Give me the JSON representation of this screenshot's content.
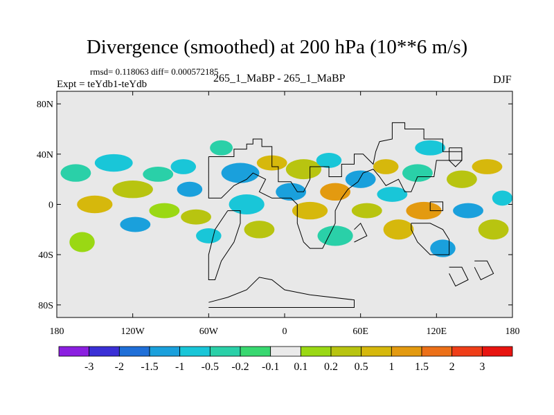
{
  "chart_data": {
    "type": "heatmap",
    "title": "Divergence (smoothed) at 200 hPa (10**6 m/s)",
    "stats_text": "rmsd= 0.118063 diff= 0.000572185",
    "center_label": "265_1_MaBP - 265_1_MaBP",
    "left_label": "Expt = teYdb1-teYdb",
    "right_label": "DJF",
    "x_axis": {
      "range": [
        -180,
        180
      ],
      "ticks": [
        -180,
        -120,
        -60,
        0,
        60,
        120,
        180
      ],
      "tick_labels": [
        "180",
        "120W",
        "60W",
        "0",
        "60E",
        "120E",
        "180"
      ]
    },
    "y_axis": {
      "range": [
        -90,
        90
      ],
      "ticks": [
        80,
        40,
        0,
        -40,
        -80
      ],
      "tick_labels": [
        "80N",
        "40N",
        "0",
        "40S",
        "80S"
      ]
    },
    "colorbar": {
      "colors": [
        "#8b1fe0",
        "#3a2fd6",
        "#1f6fd8",
        "#1aa0dc",
        "#19c6d8",
        "#2ad0a8",
        "#38d870",
        "#eaeaea",
        "#9ad814",
        "#b8c410",
        "#d6b80c",
        "#e39a10",
        "#ec7018",
        "#ef3e18",
        "#e81410"
      ],
      "labels": [
        "-3",
        "-2",
        "-1.5",
        "-1",
        "-0.5",
        "-0.2",
        "-0.1",
        "0.1",
        "0.2",
        "0.5",
        "1",
        "1.5",
        "2",
        "3"
      ]
    },
    "field_blobs": [
      {
        "lon": -165,
        "lat": 25,
        "rlon": 12,
        "rlat": 7,
        "c": 5
      },
      {
        "lon": -150,
        "lat": 0,
        "rlon": 14,
        "rlat": 7,
        "c": 10
      },
      {
        "lon": -160,
        "lat": -30,
        "rlon": 10,
        "rlat": 8,
        "c": 8
      },
      {
        "lon": -135,
        "lat": 33,
        "rlon": 15,
        "rlat": 7,
        "c": 4
      },
      {
        "lon": -120,
        "lat": 12,
        "rlon": 16,
        "rlat": 7,
        "c": 9
      },
      {
        "lon": -118,
        "lat": -16,
        "rlon": 12,
        "rlat": 6,
        "c": 3
      },
      {
        "lon": -100,
        "lat": 24,
        "rlon": 12,
        "rlat": 6,
        "c": 5
      },
      {
        "lon": -95,
        "lat": -5,
        "rlon": 12,
        "rlat": 6,
        "c": 8
      },
      {
        "lon": -80,
        "lat": 30,
        "rlon": 10,
        "rlat": 6,
        "c": 4
      },
      {
        "lon": -75,
        "lat": 12,
        "rlon": 10,
        "rlat": 6,
        "c": 3
      },
      {
        "lon": -70,
        "lat": -10,
        "rlon": 12,
        "rlat": 6,
        "c": 9
      },
      {
        "lon": -60,
        "lat": -25,
        "rlon": 10,
        "rlat": 6,
        "c": 4
      },
      {
        "lon": -50,
        "lat": 45,
        "rlon": 9,
        "rlat": 6,
        "c": 5
      },
      {
        "lon": -35,
        "lat": 25,
        "rlon": 15,
        "rlat": 8,
        "c": 3
      },
      {
        "lon": -30,
        "lat": 0,
        "rlon": 14,
        "rlat": 8,
        "c": 4
      },
      {
        "lon": -20,
        "lat": -20,
        "rlon": 12,
        "rlat": 7,
        "c": 9
      },
      {
        "lon": -10,
        "lat": 33,
        "rlon": 12,
        "rlat": 6,
        "c": 10
      },
      {
        "lon": 5,
        "lat": 10,
        "rlon": 12,
        "rlat": 7,
        "c": 3
      },
      {
        "lon": 15,
        "lat": 28,
        "rlon": 14,
        "rlat": 8,
        "c": 9
      },
      {
        "lon": 20,
        "lat": -5,
        "rlon": 14,
        "rlat": 7,
        "c": 10
      },
      {
        "lon": 35,
        "lat": 35,
        "rlon": 10,
        "rlat": 6,
        "c": 4
      },
      {
        "lon": 40,
        "lat": 10,
        "rlon": 12,
        "rlat": 7,
        "c": 11
      },
      {
        "lon": 40,
        "lat": -25,
        "rlon": 14,
        "rlat": 8,
        "c": 5
      },
      {
        "lon": 60,
        "lat": 20,
        "rlon": 12,
        "rlat": 7,
        "c": 3
      },
      {
        "lon": 65,
        "lat": -5,
        "rlon": 12,
        "rlat": 6,
        "c": 9
      },
      {
        "lon": 80,
        "lat": 30,
        "rlon": 10,
        "rlat": 6,
        "c": 10
      },
      {
        "lon": 85,
        "lat": 8,
        "rlon": 12,
        "rlat": 6,
        "c": 4
      },
      {
        "lon": 90,
        "lat": -20,
        "rlon": 12,
        "rlat": 8,
        "c": 10
      },
      {
        "lon": 105,
        "lat": 25,
        "rlon": 12,
        "rlat": 7,
        "c": 5
      },
      {
        "lon": 110,
        "lat": -5,
        "rlon": 14,
        "rlat": 7,
        "c": 11
      },
      {
        "lon": 115,
        "lat": 45,
        "rlon": 12,
        "rlat": 6,
        "c": 4
      },
      {
        "lon": 125,
        "lat": -35,
        "rlon": 10,
        "rlat": 7,
        "c": 3
      },
      {
        "lon": 140,
        "lat": 20,
        "rlon": 12,
        "rlat": 7,
        "c": 9
      },
      {
        "lon": 145,
        "lat": -5,
        "rlon": 12,
        "rlat": 6,
        "c": 3
      },
      {
        "lon": 160,
        "lat": 30,
        "rlon": 12,
        "rlat": 6,
        "c": 10
      },
      {
        "lon": 165,
        "lat": -20,
        "rlon": 12,
        "rlat": 8,
        "c": 9
      },
      {
        "lon": 172,
        "lat": 5,
        "rlon": 8,
        "rlat": 6,
        "c": 4
      }
    ],
    "outlines": [
      [
        [
          -60,
          38
        ],
        [
          -40,
          38
        ],
        [
          -40,
          44
        ],
        [
          -30,
          44
        ],
        [
          -30,
          48
        ],
        [
          -25,
          48
        ],
        [
          -25,
          52
        ],
        [
          -18,
          52
        ],
        [
          -18,
          46
        ],
        [
          -10,
          46
        ],
        [
          -10,
          30
        ],
        [
          -5,
          30
        ],
        [
          -5,
          18
        ],
        [
          5,
          18
        ],
        [
          10,
          10
        ],
        [
          15,
          10
        ],
        [
          20,
          20
        ],
        [
          20,
          30
        ],
        [
          35,
          30
        ],
        [
          35,
          22
        ],
        [
          45,
          22
        ],
        [
          45,
          32
        ],
        [
          55,
          32
        ],
        [
          55,
          40
        ],
        [
          62,
          40
        ],
        [
          70,
          32
        ],
        [
          72,
          42
        ],
        [
          75,
          50
        ],
        [
          85,
          52
        ],
        [
          85,
          65
        ],
        [
          95,
          65
        ],
        [
          95,
          60
        ],
        [
          110,
          60
        ],
        [
          110,
          52
        ],
        [
          125,
          52
        ],
        [
          125,
          42
        ],
        [
          140,
          42
        ],
        [
          140,
          35
        ],
        [
          120,
          35
        ],
        [
          118,
          22
        ],
        [
          105,
          22
        ],
        [
          100,
          10
        ],
        [
          95,
          10
        ],
        [
          90,
          20
        ],
        [
          80,
          15
        ],
        [
          75,
          22
        ],
        [
          70,
          28
        ],
        [
          62,
          25
        ],
        [
          58,
          18
        ],
        [
          50,
          12
        ],
        [
          45,
          5
        ],
        [
          40,
          -5
        ],
        [
          40,
          -15
        ],
        [
          35,
          -25
        ],
        [
          30,
          -35
        ],
        [
          20,
          -35
        ],
        [
          15,
          -30
        ],
        [
          10,
          -15
        ],
        [
          10,
          0
        ],
        [
          5,
          5
        ],
        [
          -10,
          5
        ],
        [
          -20,
          10
        ],
        [
          -15,
          20
        ],
        [
          -25,
          25
        ],
        [
          -30,
          20
        ],
        [
          -40,
          15
        ],
        [
          -45,
          10
        ],
        [
          -50,
          5
        ],
        [
          -60,
          5
        ],
        [
          -60,
          38
        ]
      ],
      [
        [
          -45,
          -5
        ],
        [
          -35,
          -5
        ],
        [
          -35,
          -15
        ],
        [
          -40,
          -30
        ],
        [
          -50,
          -45
        ],
        [
          -55,
          -60
        ],
        [
          -60,
          -60
        ],
        [
          -60,
          -40
        ],
        [
          -55,
          -20
        ],
        [
          -45,
          -5
        ]
      ],
      [
        [
          -60,
          -78
        ],
        [
          -45,
          -74
        ],
        [
          -30,
          -68
        ],
        [
          -20,
          -58
        ],
        [
          -10,
          -60
        ],
        [
          0,
          -68
        ],
        [
          20,
          -72
        ],
        [
          55,
          -76
        ],
        [
          55,
          -82
        ],
        [
          -60,
          -82
        ]
      ],
      [
        [
          100,
          -15
        ],
        [
          115,
          -15
        ],
        [
          125,
          -20
        ],
        [
          130,
          -28
        ],
        [
          130,
          -40
        ],
        [
          115,
          -40
        ],
        [
          105,
          -30
        ],
        [
          100,
          -20
        ],
        [
          100,
          -15
        ]
      ],
      [
        [
          130,
          -50
        ],
        [
          140,
          -50
        ],
        [
          145,
          -60
        ],
        [
          135,
          -65
        ],
        [
          130,
          -55
        ]
      ],
      [
        [
          115,
          2
        ],
        [
          125,
          2
        ],
        [
          125,
          -5
        ],
        [
          115,
          -5
        ],
        [
          115,
          2
        ]
      ],
      [
        [
          130,
          45
        ],
        [
          140,
          45
        ],
        [
          140,
          35
        ],
        [
          135,
          30
        ],
        [
          130,
          35
        ],
        [
          130,
          45
        ]
      ],
      [
        [
          150,
          -45
        ],
        [
          160,
          -45
        ],
        [
          165,
          -55
        ],
        [
          155,
          -60
        ],
        [
          150,
          -50
        ]
      ],
      [
        [
          55,
          -20
        ],
        [
          60,
          -15
        ],
        [
          65,
          -25
        ],
        [
          55,
          -30
        ]
      ]
    ]
  }
}
